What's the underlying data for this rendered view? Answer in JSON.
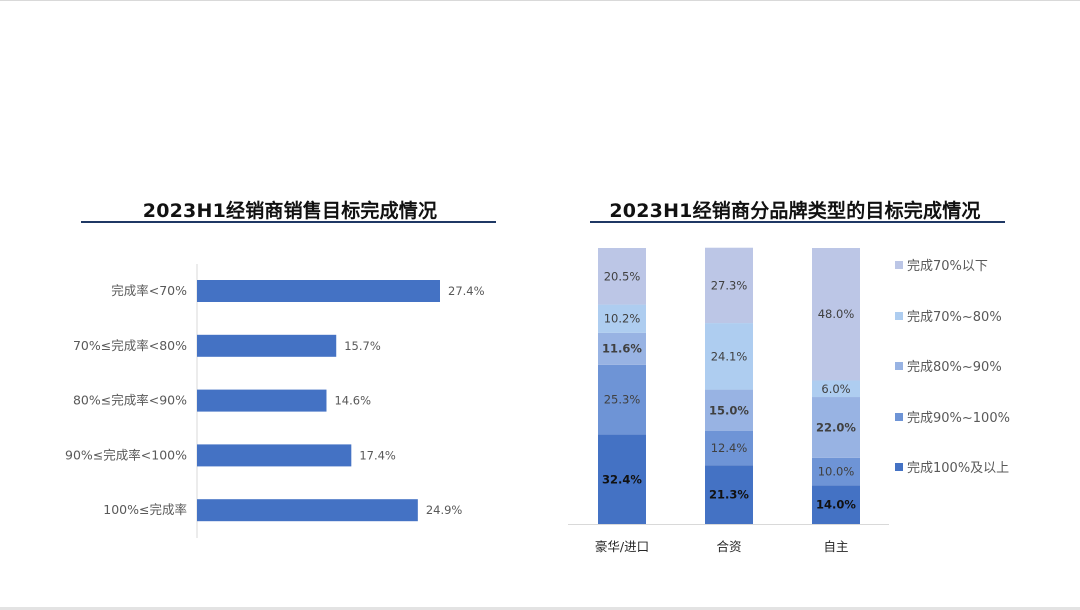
{
  "charts": {
    "left_title": "2023H1经销商销售目标完成情况",
    "right_title": "2023H1经销商分品牌类型的目标完成情况"
  },
  "colors": {
    "bar": "#4472c4",
    "stack": [
      "#4472c4",
      "#6e94d6",
      "#98b3e3",
      "#aecdf0",
      "#bcc6e6"
    ],
    "title_rule": "#1f3864"
  },
  "chart_data": [
    {
      "type": "bar",
      "orientation": "horizontal",
      "title": "2023H1经销商销售目标完成情况",
      "categories": [
        "完成率<70%",
        "70%≤完成率<80%",
        "80%≤完成率<90%",
        "90%≤完成率<100%",
        "100%≤完成率"
      ],
      "values": [
        27.4,
        15.7,
        14.6,
        17.4,
        24.9
      ],
      "value_labels": [
        "27.4%",
        "15.7%",
        "14.6%",
        "17.4%",
        "24.9%"
      ],
      "unit": "%",
      "grid": false,
      "legend": "none"
    },
    {
      "type": "bar",
      "stacked": true,
      "title": "2023H1经销商分品牌类型的目标完成情况",
      "categories": [
        "豪华/进口",
        "合资",
        "自主"
      ],
      "series": [
        {
          "name": "完成100%及以上",
          "values": [
            32.4,
            21.3,
            14.0
          ],
          "labels": [
            "32.4%",
            "21.3%",
            "14.0%"
          ],
          "bold": true
        },
        {
          "name": "完成90%~100%",
          "values": [
            25.3,
            12.4,
            10.0
          ],
          "labels": [
            "25.3%",
            "12.4%",
            "10.0%"
          ],
          "bold": false
        },
        {
          "name": "完成80%~90%",
          "values": [
            11.6,
            15.0,
            22.0
          ],
          "labels": [
            "11.6%",
            "15.0%",
            "22.0%"
          ],
          "bold": true
        },
        {
          "name": "完成70%~80%",
          "values": [
            10.2,
            24.1,
            6.0
          ],
          "labels": [
            "10.2%",
            "24.1%",
            "6.0%"
          ],
          "bold": false
        },
        {
          "name": "完成70%以下",
          "values": [
            20.5,
            27.3,
            48.0
          ],
          "labels": [
            "20.5%",
            "27.3%",
            "48.0%"
          ],
          "bold": false
        }
      ],
      "ylim": [
        0,
        100
      ],
      "legend": "right",
      "grid": false
    }
  ]
}
